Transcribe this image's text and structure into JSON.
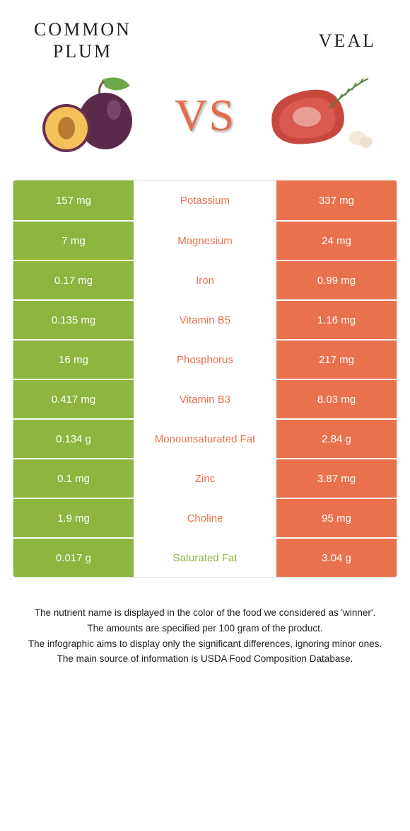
{
  "colors": {
    "left": "#8eb53f",
    "right": "#e9724d",
    "vs": "#e46b4c"
  },
  "header": {
    "left_title": "COMMON\nPLUM",
    "right_title": "VEAL",
    "vs_label": "VS"
  },
  "table": {
    "rows": [
      {
        "left": "157 mg",
        "label": "Potassium",
        "right": "337 mg",
        "winner": "right"
      },
      {
        "left": "7 mg",
        "label": "Magnesium",
        "right": "24 mg",
        "winner": "right"
      },
      {
        "left": "0.17 mg",
        "label": "Iron",
        "right": "0.99 mg",
        "winner": "right"
      },
      {
        "left": "0.135 mg",
        "label": "Vitamin B5",
        "right": "1.16 mg",
        "winner": "right"
      },
      {
        "left": "16 mg",
        "label": "Phosphorus",
        "right": "217 mg",
        "winner": "right"
      },
      {
        "left": "0.417 mg",
        "label": "Vitamin B3",
        "right": "8.03 mg",
        "winner": "right"
      },
      {
        "left": "0.134 g",
        "label": "Monounsaturated Fat",
        "right": "2.84 g",
        "winner": "right"
      },
      {
        "left": "0.1 mg",
        "label": "Zinc",
        "right": "3.87 mg",
        "winner": "right"
      },
      {
        "left": "1.9 mg",
        "label": "Choline",
        "right": "95 mg",
        "winner": "right"
      },
      {
        "left": "0.017 g",
        "label": "Saturated Fat",
        "right": "3.04 g",
        "winner": "left"
      }
    ]
  },
  "footer": {
    "lines": [
      "The nutrient name is displayed in the color of the food we considered as 'winner'.",
      "The amounts are specified per 100 gram of the product.",
      "The infographic aims to display only the significant differences, ignoring minor ones.",
      "The main source of information is USDA Food Composition Database."
    ]
  }
}
